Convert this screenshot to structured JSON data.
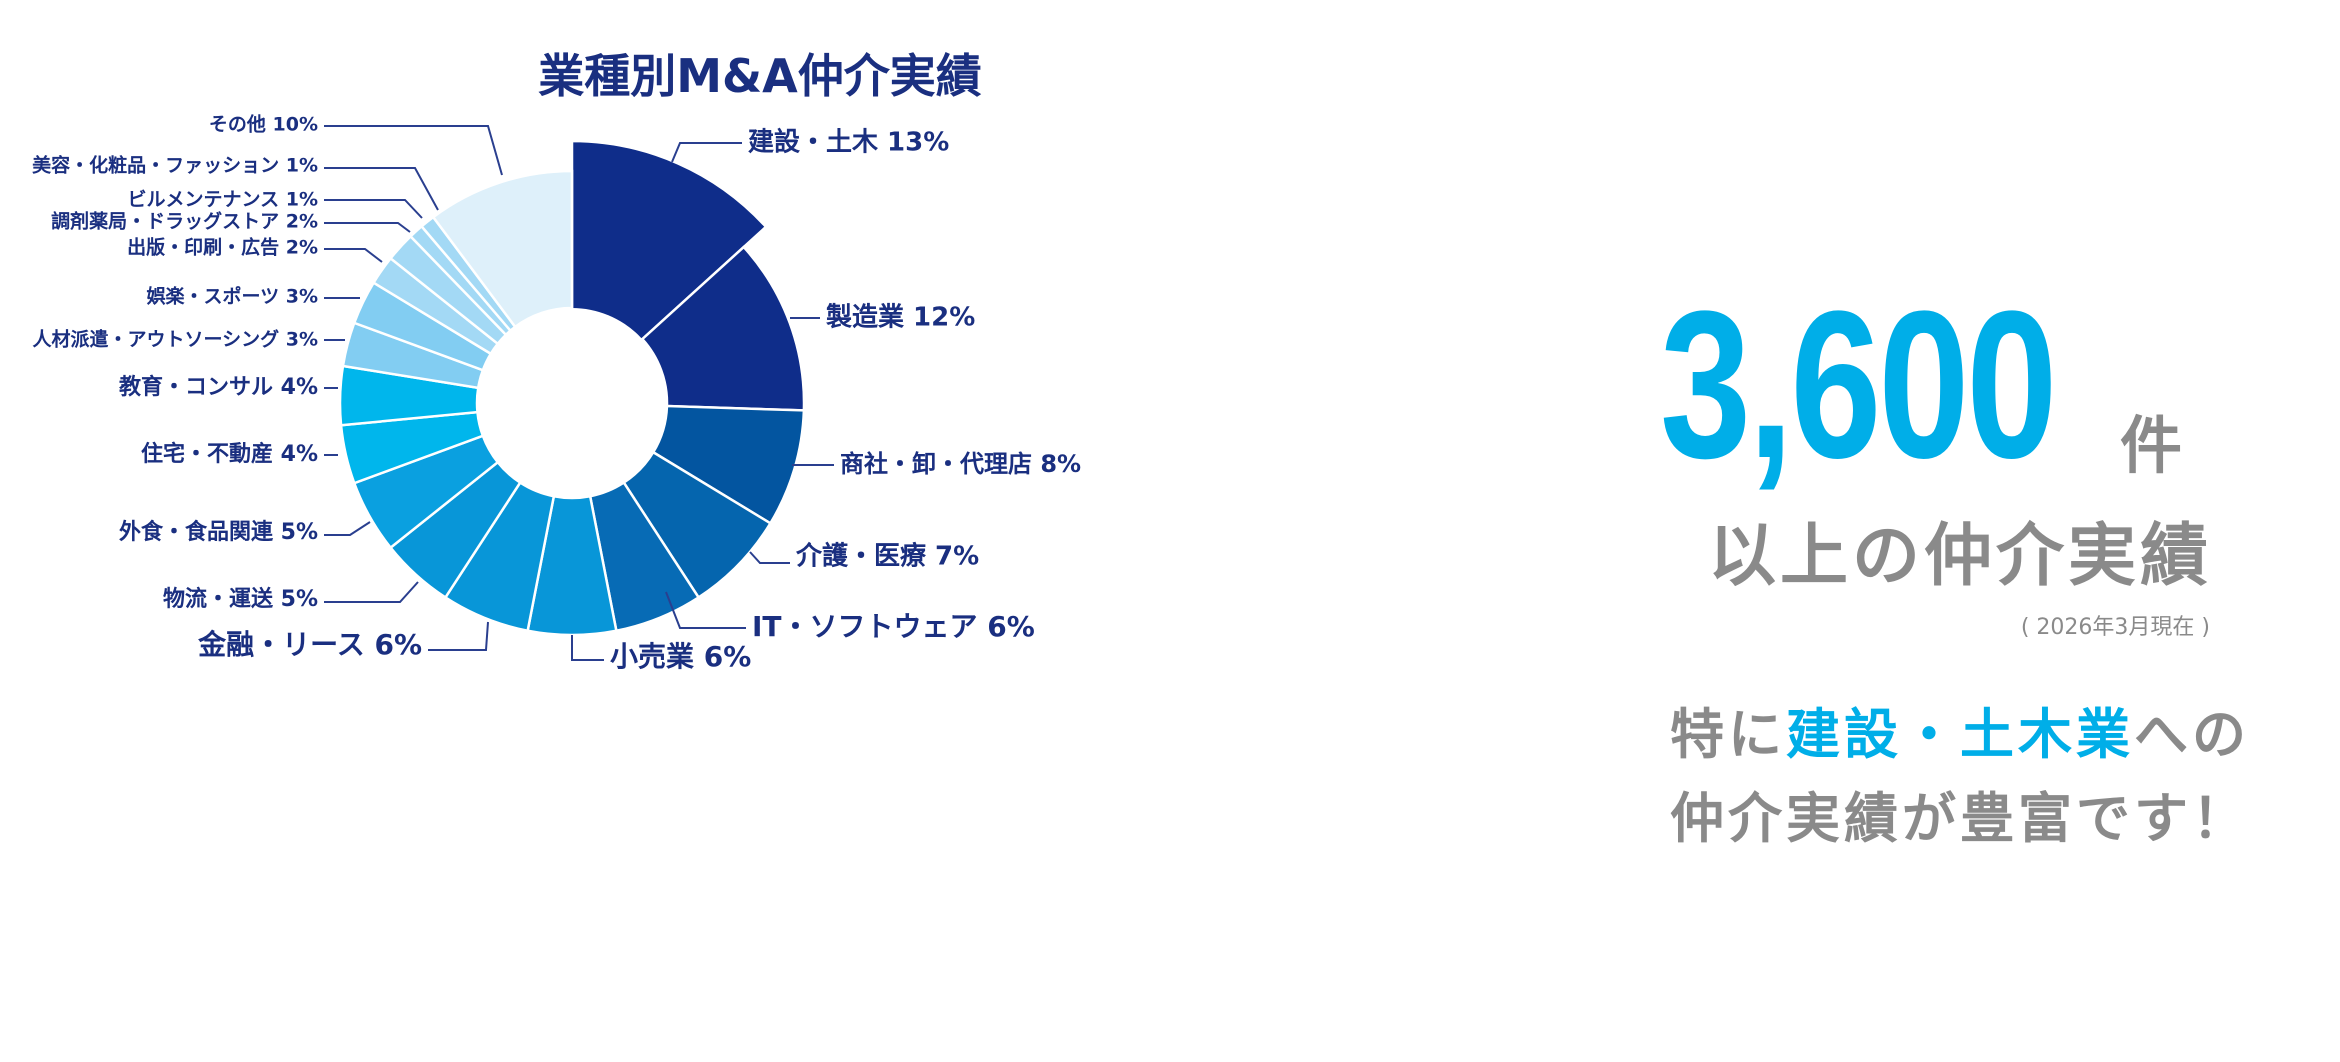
{
  "chart_data": {
    "type": "pie",
    "donut": true,
    "title": "業種別M&A仲介実績",
    "slices": [
      {
        "label": "建設・土木",
        "pct_text": "13%",
        "value": 13,
        "color": "#0f2d8a"
      },
      {
        "label": "製造業",
        "pct_text": "12%",
        "value": 12,
        "color": "#0f2d8a"
      },
      {
        "label": "商社・卸・代理店",
        "pct_text": "8%",
        "value": 8,
        "color": "#0355a0"
      },
      {
        "label": "介護・医療",
        "pct_text": "7%",
        "value": 7,
        "color": "#0565ae"
      },
      {
        "label": "IT・ソフトウェア",
        "pct_text": "6%",
        "value": 6,
        "color": "#076bb5"
      },
      {
        "label": "小売業",
        "pct_text": "6%",
        "value": 6,
        "color": "#0896d8"
      },
      {
        "label": "金融・リース",
        "pct_text": "6%",
        "value": 6,
        "color": "#0896d8"
      },
      {
        "label": "物流・運送",
        "pct_text": "5%",
        "value": 5,
        "color": "#0896d8"
      },
      {
        "label": "外食・食品関連",
        "pct_text": "5%",
        "value": 5,
        "color": "#0aa0e0"
      },
      {
        "label": "住宅・不動産",
        "pct_text": "4%",
        "value": 4,
        "color": "#00b6ec"
      },
      {
        "label": "教育・コンサル",
        "pct_text": "4%",
        "value": 4,
        "color": "#00b6ec"
      },
      {
        "label": "人材派遣・アウトソーシング",
        "pct_text": "3%",
        "value": 3,
        "color": "#82cdf2"
      },
      {
        "label": "娯楽・スポーツ",
        "pct_text": "3%",
        "value": 3,
        "color": "#82cdf2"
      },
      {
        "label": "出版・印刷・広告",
        "pct_text": "2%",
        "value": 2,
        "color": "#a3d9f5"
      },
      {
        "label": "調剤薬局・ドラッグストア",
        "pct_text": "2%",
        "value": 2,
        "color": "#a3d9f5"
      },
      {
        "label": "ビルメンテナンス",
        "pct_text": "1%",
        "value": 1,
        "color": "#a3d9f5"
      },
      {
        "label": "美容・化粧品・ファッション",
        "pct_text": "1%",
        "value": 1,
        "color": "#a3d9f5"
      },
      {
        "label": "その他",
        "pct_text": "10%",
        "value": 10,
        "color": "#def0fa"
      }
    ]
  },
  "summary": {
    "count": "3,600",
    "unit": "件",
    "subtitle": "以上の仲介実績",
    "as_of": "( 2026年3月現在 )",
    "tag_pre": "特に",
    "tag_highlight": "建設・土木業",
    "tag_post": "への",
    "tag_line2": "仲介実績が豊富です！"
  }
}
